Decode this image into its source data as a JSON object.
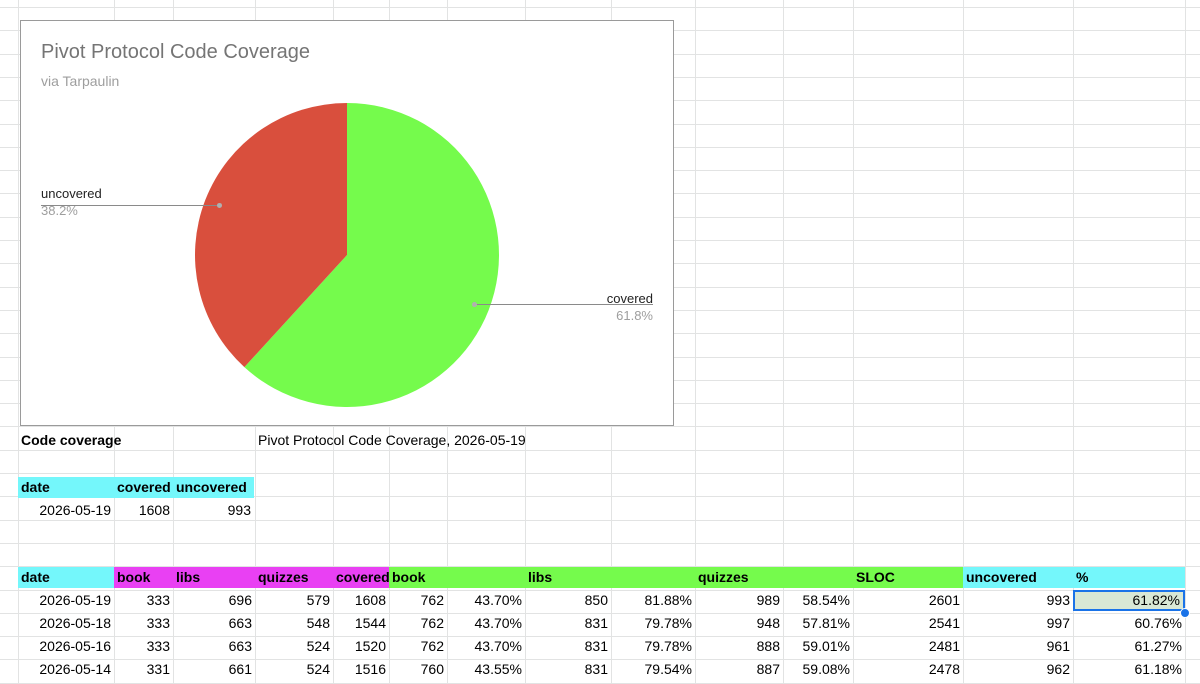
{
  "chart_data": {
    "type": "pie",
    "title": "Pivot Protocol Code Coverage",
    "subtitle": "via Tarpaulin",
    "slices": [
      {
        "label": "covered",
        "value": 61.8,
        "percent_label": "61.8%",
        "color": "#75fb4c"
      },
      {
        "label": "uncovered",
        "value": 38.2,
        "percent_label": "38.2%",
        "color": "#d94f3d"
      }
    ],
    "legend": "labeled slices"
  },
  "section": {
    "label": "Code coverage",
    "caption": "Pivot Protocol Code Coverage, 2026-05-19"
  },
  "summary": {
    "headers": [
      "date",
      "covered",
      "uncovered"
    ],
    "row": [
      "2026-05-19",
      "1608",
      "993"
    ]
  },
  "table": {
    "headers": [
      "date",
      "book",
      "libs",
      "quizzes",
      "covered",
      "book",
      "",
      "libs",
      "",
      "quizzes",
      "",
      "SLOC",
      "uncovered",
      "%"
    ],
    "rows": [
      [
        "2026-05-19",
        "333",
        "696",
        "579",
        "1608",
        "762",
        "43.70%",
        "850",
        "81.88%",
        "989",
        "58.54%",
        "2601",
        "993",
        "61.82%"
      ],
      [
        "2026-05-18",
        "333",
        "663",
        "548",
        "1544",
        "762",
        "43.70%",
        "831",
        "79.78%",
        "948",
        "57.81%",
        "2541",
        "997",
        "60.76%"
      ],
      [
        "2026-05-16",
        "333",
        "663",
        "524",
        "1520",
        "762",
        "43.70%",
        "831",
        "79.78%",
        "888",
        "59.01%",
        "2481",
        "961",
        "61.27%"
      ],
      [
        "2026-05-14",
        "331",
        "661",
        "524",
        "1516",
        "760",
        "43.55%",
        "831",
        "79.54%",
        "887",
        "59.08%",
        "2478",
        "962",
        "61.18%"
      ]
    ]
  },
  "colors": {
    "header_cyan": "#74f7fb",
    "header_magenta": "#e940f3",
    "header_green": "#75fb4c",
    "selection": "#1a73e8"
  }
}
